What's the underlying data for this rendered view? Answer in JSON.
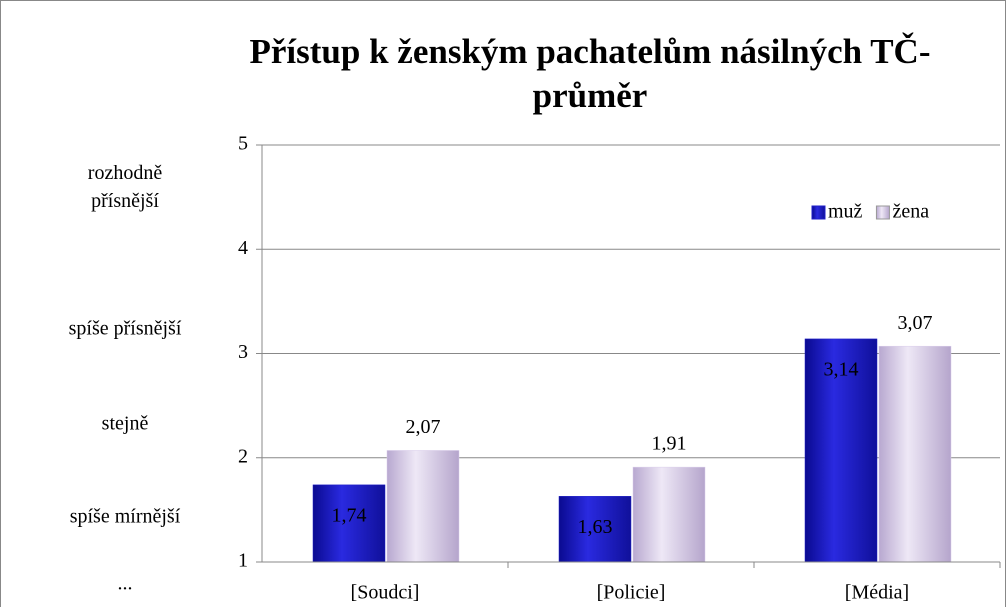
{
  "chart_data": {
    "type": "bar",
    "title": "Přístup k ženským pachatelům násilných TČ- průměr",
    "categories": [
      "[Soudci]",
      "[Policie]",
      "[Média]"
    ],
    "series": [
      {
        "name": "muž",
        "color": "#1f1fc8",
        "values": [
          1.74,
          1.63,
          3.14
        ],
        "value_labels": [
          "1,74",
          "1,63",
          "3,14"
        ]
      },
      {
        "name": "žena",
        "color": "#d9cdea",
        "values": [
          2.07,
          1.91,
          3.07
        ],
        "value_labels": [
          "2,07",
          "1,91",
          "3,07"
        ]
      }
    ],
    "ylim": [
      1,
      5
    ],
    "yticks": [
      1,
      2,
      3,
      4,
      5
    ],
    "grid": true,
    "legend": "top-right",
    "annotations": [
      "rozhodně přísnější",
      "spíše přísnější",
      "stejně",
      "spíše mírnější",
      "..."
    ]
  }
}
